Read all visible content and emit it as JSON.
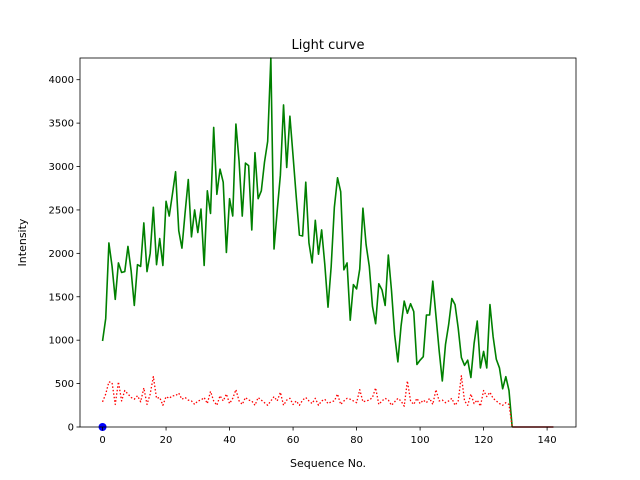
{
  "chart_data": {
    "type": "line",
    "title": "Light curve",
    "xlabel": "Sequence No.",
    "ylabel": "Intensity",
    "xlim": [
      -7.1,
      149.1
    ],
    "ylim": [
      0,
      4250
    ],
    "xticks": [
      0,
      20,
      40,
      60,
      80,
      100,
      120,
      140
    ],
    "yticks": [
      0,
      500,
      1000,
      1500,
      2000,
      2500,
      3000,
      3500,
      4000
    ],
    "grid": false,
    "series": [
      {
        "color": "#008000",
        "style": "solid",
        "x": [
          0,
          1,
          2,
          3,
          4,
          5,
          6,
          7,
          8,
          9,
          10,
          11,
          12,
          13,
          14,
          15,
          16,
          17,
          18,
          19,
          20,
          21,
          22,
          23,
          24,
          25,
          26,
          27,
          28,
          29,
          30,
          31,
          32,
          33,
          34,
          35,
          36,
          37,
          38,
          39,
          40,
          41,
          42,
          43,
          44,
          45,
          46,
          47,
          48,
          49,
          50,
          51,
          52,
          53,
          54,
          55,
          56,
          57,
          58,
          59,
          60,
          61,
          62,
          63,
          64,
          65,
          66,
          67,
          68,
          69,
          70,
          71,
          72,
          73,
          74,
          75,
          76,
          77,
          78,
          79,
          80,
          81,
          82,
          83,
          84,
          85,
          86,
          87,
          88,
          89,
          90,
          91,
          92,
          93,
          94,
          95,
          96,
          97,
          98,
          99,
          100,
          101,
          102,
          103,
          104,
          105,
          106,
          107,
          108,
          109,
          110,
          111,
          112,
          113,
          114,
          115,
          116,
          117,
          118,
          119,
          120,
          121,
          122,
          123,
          124,
          125,
          126,
          127,
          128,
          129
        ],
        "y": [
          990,
          1250,
          2120,
          1850,
          1470,
          1890,
          1780,
          1790,
          2080,
          1800,
          1400,
          1870,
          1850,
          2350,
          1790,
          2000,
          2530,
          1870,
          2170,
          1860,
          2600,
          2430,
          2680,
          2940,
          2260,
          2060,
          2470,
          2850,
          2190,
          2500,
          2240,
          2510,
          1860,
          2720,
          2460,
          3450,
          2680,
          2970,
          2820,
          2010,
          2630,
          2430,
          3490,
          3060,
          2430,
          3040,
          3010,
          2270,
          3160,
          2630,
          2720,
          3050,
          3290,
          4250,
          2050,
          2490,
          2900,
          3710,
          2990,
          3580,
          3120,
          2650,
          2210,
          2200,
          2820,
          2120,
          1890,
          2380,
          1990,
          2270,
          1870,
          1380,
          1850,
          2530,
          2870,
          2710,
          1810,
          1890,
          1230,
          1640,
          1590,
          1820,
          2520,
          2100,
          1850,
          1390,
          1190,
          1650,
          1580,
          1400,
          1980,
          1570,
          1060,
          750,
          1160,
          1450,
          1310,
          1420,
          1330,
          720,
          770,
          810,
          1290,
          1290,
          1680,
          1280,
          880,
          530,
          950,
          1180,
          1480,
          1410,
          1140,
          800,
          710,
          770,
          570,
          960,
          1220,
          680,
          870,
          680,
          1410,
          1040,
          780,
          680,
          440,
          580,
          420,
          0
        ]
      },
      {
        "color": "#ff0000",
        "style": "dotted",
        "x": [
          0,
          1,
          2,
          3,
          4,
          5,
          6,
          7,
          8,
          9,
          10,
          11,
          12,
          13,
          14,
          15,
          16,
          17,
          18,
          19,
          20,
          21,
          22,
          23,
          24,
          25,
          26,
          27,
          28,
          29,
          30,
          31,
          32,
          33,
          34,
          35,
          36,
          37,
          38,
          39,
          40,
          41,
          42,
          43,
          44,
          45,
          46,
          47,
          48,
          49,
          50,
          51,
          52,
          53,
          54,
          55,
          56,
          57,
          58,
          59,
          60,
          61,
          62,
          63,
          64,
          65,
          66,
          67,
          68,
          69,
          70,
          71,
          72,
          73,
          74,
          75,
          76,
          77,
          78,
          79,
          80,
          81,
          82,
          83,
          84,
          85,
          86,
          87,
          88,
          89,
          90,
          91,
          92,
          93,
          94,
          95,
          96,
          97,
          98,
          99,
          100,
          101,
          102,
          103,
          104,
          105,
          106,
          107,
          108,
          109,
          110,
          111,
          112,
          113,
          114,
          115,
          116,
          117,
          118,
          119,
          120,
          121,
          122,
          123,
          124,
          125,
          126,
          127,
          128,
          129
        ],
        "y": [
          290,
          380,
          520,
          510,
          260,
          520,
          300,
          420,
          380,
          340,
          320,
          360,
          290,
          450,
          260,
          380,
          580,
          330,
          340,
          250,
          350,
          330,
          360,
          360,
          390,
          320,
          340,
          310,
          300,
          260,
          300,
          310,
          340,
          270,
          410,
          300,
          250,
          360,
          300,
          380,
          270,
          330,
          430,
          300,
          260,
          340,
          310,
          300,
          250,
          340,
          310,
          280,
          250,
          300,
          350,
          300,
          400,
          250,
          310,
          330,
          260,
          300,
          250,
          310,
          340,
          300,
          270,
          330,
          250,
          300,
          320,
          270,
          290,
          300,
          380,
          260,
          300,
          330,
          320,
          300,
          280,
          430,
          290,
          300,
          310,
          340,
          450,
          260,
          300,
          330,
          310,
          250,
          290,
          330,
          300,
          240,
          530,
          300,
          260,
          330,
          270,
          310,
          280,
          330,
          260,
          430,
          300,
          310,
          280,
          300,
          330,
          250,
          300,
          590,
          300,
          250,
          380,
          270,
          310,
          240,
          420,
          350,
          400,
          330,
          300,
          270,
          250,
          280,
          260,
          0
        ]
      },
      {
        "color": "#0000ff",
        "style": "marker",
        "x": [
          0
        ],
        "y": [
          0
        ]
      },
      {
        "color": "#8b0000",
        "style": "solid",
        "x": [
          129,
          142
        ],
        "y": [
          0,
          0
        ]
      }
    ]
  }
}
